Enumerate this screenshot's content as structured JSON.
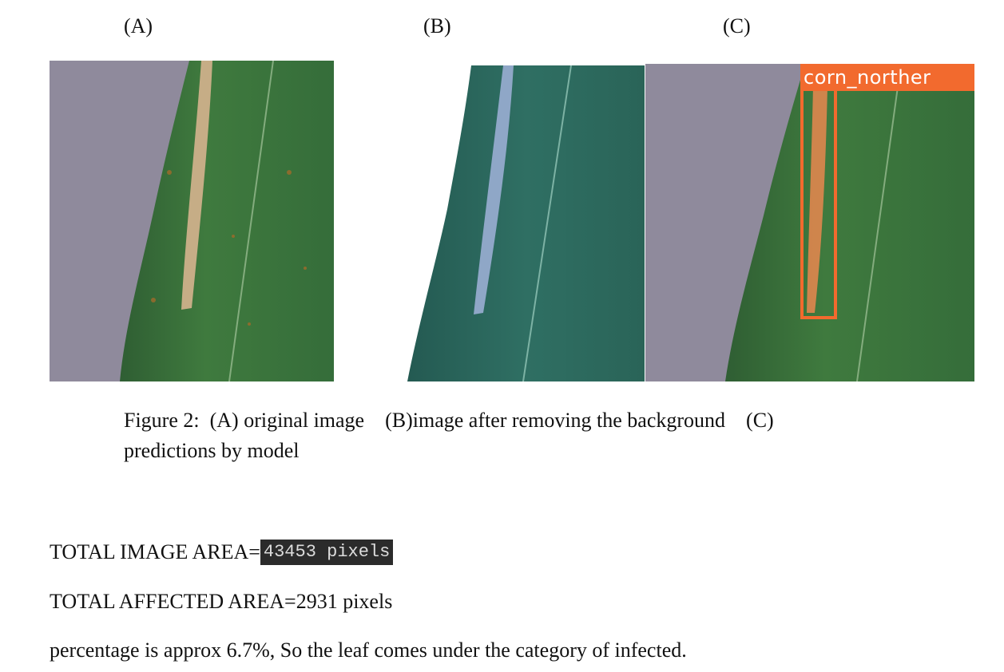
{
  "figure": {
    "panels": [
      {
        "label": "(A)"
      },
      {
        "label": "(B)"
      },
      {
        "label": "(C)",
        "detection_label": "corn_norther"
      }
    ],
    "caption_line1": "Figure 2:  (A) original image    (B)image after removing the background    (C)",
    "caption_line2": "predictions by model",
    "colors": {
      "leaf": "#3f7a3e",
      "leaf_dark": "#2f5e33",
      "background_surface": "#8f8a9c",
      "lesion": "#c6ad86",
      "lesion_removed_bg": "#8fa7c7",
      "detection_box": "#f26a2e"
    }
  },
  "results": {
    "total_image_area_label": "TOTAL IMAGE AREA=",
    "total_image_area_value": "43453 pixels",
    "total_affected_area": "TOTAL AFFECTED AREA=2931 pixels",
    "conclusion": "percentage is approx 6.7%, So the leaf comes under the category of infected."
  }
}
